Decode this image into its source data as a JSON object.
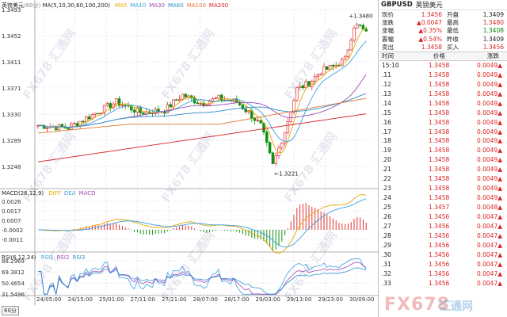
{
  "chart": {
    "symbol_name": "英镑美元",
    "period_tag": "(60分)",
    "ma_label": "MA(5,10,30,60,100,200)",
    "ma_items": [
      {
        "label": "MA5",
        "color": "#e6a700"
      },
      {
        "label": "MA10",
        "color": "#3aa0e0"
      },
      {
        "label": "MA30",
        "color": "#9b4bb5"
      },
      {
        "label": "MA60",
        "color": "#2d8fd0"
      },
      {
        "label": "MA100",
        "color": "#e07830"
      },
      {
        "label": "MA200",
        "color": "#d62020"
      }
    ],
    "price_axis": [
      "1.3493",
      "1.3452",
      "1.3411",
      "1.3371",
      "1.3330",
      "1.3289",
      "1.3248"
    ],
    "high_annotation": "1.3480",
    "low_annotation": "1.3221",
    "macd_label": "MACD(26,12,9)",
    "macd_items": [
      {
        "label": "DIFF",
        "color": "#e6a700"
      },
      {
        "label": "DEA",
        "color": "#3aa0e0"
      },
      {
        "label": "MACD",
        "color": "#9b4bb5"
      }
    ],
    "macd_axis": [
      "0.0026",
      "0.0017",
      "0.0007",
      "-0.0002",
      "-0.0011"
    ],
    "rsi_label": "RSI(6,12,24)",
    "rsi_items": [
      {
        "label": "RSI1",
        "color": "#3aa0e0"
      },
      {
        "label": "RSI2",
        "color": "#9b4bb5"
      },
      {
        "label": "RSI3",
        "color": "#2d8fd0"
      }
    ],
    "rsi_axis": [
      "88.2969",
      "69.3812",
      "50.4654",
      "31.5496"
    ],
    "time_axis": [
      "24/05:00",
      "24/15:00",
      "25/01:00",
      "27/11:00",
      "27/21:00",
      "28/07:00",
      "28/17:00",
      "29/03:00",
      "29/13:00",
      "29/23:00",
      "30/09:00"
    ],
    "period_button": "60分",
    "watermark": "FX678 汇通网",
    "brand_logo": "FX678",
    "brand_logo_cn": "汇通网"
  },
  "quote": {
    "code": "GBPUSD",
    "name": "英镑美元",
    "rows": [
      {
        "l1": "现价",
        "v1": "1.3456",
        "l2": "开盘",
        "v2": "1.3409"
      },
      {
        "l1": "涨跌",
        "v1": "▲0.0047",
        "l2": "最高",
        "v2": "1.3480"
      },
      {
        "l1": "涨幅",
        "v1": "▲0.35%",
        "l2": "最低",
        "v2": "1.3408"
      },
      {
        "l1": "震幅",
        "v1": "▲0.54%",
        "l2": "昨收",
        "v2": "1.3409"
      },
      {
        "l1": "卖出",
        "v1": "1.3458",
        "l2": "买入",
        "v2": "1.3456"
      }
    ],
    "v2_colors": [
      "#222",
      "#d22",
      "#080",
      "#222",
      "#d22"
    ]
  },
  "ticks": {
    "headers": {
      "time": "时间",
      "price": "价格",
      "change": "涨跌"
    },
    "rows": [
      {
        "t": "15:10",
        "p": "1.3458",
        "c": "0.0049▲"
      },
      {
        "t": ".11",
        "p": "1.3458",
        "c": "0.0049▲"
      },
      {
        "t": ".12",
        "p": "1.3458",
        "c": "0.0049▲"
      },
      {
        "t": ".13",
        "p": "1.3458",
        "c": "0.0049▲"
      },
      {
        "t": ".14",
        "p": "1.3458",
        "c": "0.0049▲"
      },
      {
        "t": ".15",
        "p": "1.3458",
        "c": "0.0049▲"
      },
      {
        "t": ".16",
        "p": "1.3458",
        "c": "0.0049▲"
      },
      {
        "t": ".17",
        "p": "1.3458",
        "c": "0.0049▲"
      },
      {
        "t": ".18",
        "p": "1.3458",
        "c": "0.0049▲"
      },
      {
        "t": ".19",
        "p": "1.3458",
        "c": "0.0049▲"
      },
      {
        "t": ".20",
        "p": "1.3458",
        "c": "0.0049▲"
      },
      {
        "t": ".21",
        "p": "1.3458",
        "c": "0.0049▲"
      },
      {
        "t": ".22",
        "p": "1.3458",
        "c": "0.0049▲"
      },
      {
        "t": ".23",
        "p": "1.3458",
        "c": "0.0049▲"
      },
      {
        "t": ".24",
        "p": "1.3458",
        "c": "0.0049▲"
      },
      {
        "t": ".25",
        "p": "1.3457",
        "c": "0.0048▲"
      },
      {
        "t": ".26",
        "p": "1.3456",
        "c": "0.0047▲"
      },
      {
        "t": ".27",
        "p": "1.3456",
        "c": "0.0047▲"
      },
      {
        "t": ".28",
        "p": "1.3456",
        "c": "0.0047▲"
      },
      {
        "t": ".29",
        "p": "1.3456",
        "c": "0.0047▲"
      },
      {
        "t": ".30",
        "p": "1.3456",
        "c": "0.0047▲"
      },
      {
        "t": ".31",
        "p": "1.3456",
        "c": "0.0047▲"
      },
      {
        "t": ".32",
        "p": "1.3456",
        "c": "0.0047▲"
      },
      {
        "t": ".33",
        "p": "1.3456",
        "c": "0.0047▲"
      }
    ]
  }
}
